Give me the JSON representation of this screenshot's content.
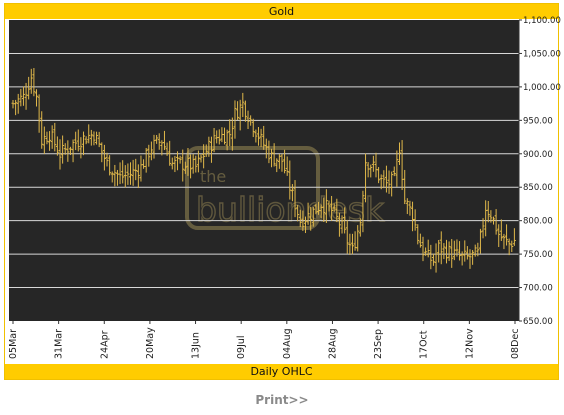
{
  "chart_data": {
    "type": "ohlc",
    "title": "Gold",
    "footer_label": "Daily OHLC",
    "watermark": "the bulliondesk",
    "x_tick_labels": [
      "05Mar",
      "31Mar",
      "24Apr",
      "20May",
      "13Jun",
      "09Jul",
      "04Aug",
      "28Aug",
      "23Sep",
      "17Oct",
      "12Nov",
      "08Dec"
    ],
    "y_tick_labels": [
      "1,100.00",
      "1,050.00",
      "1,000.00",
      "950.00",
      "900.00",
      "850.00",
      "800.00",
      "750.00",
      "700.00",
      "650.00"
    ],
    "y_ticks": [
      1100,
      1050,
      1000,
      950,
      900,
      850,
      800,
      750,
      700,
      650
    ],
    "ylim": [
      650,
      1100
    ],
    "grid": true,
    "colors": {
      "background": "#262626",
      "bars": "#e0b84a",
      "grid": "#d8d8d8",
      "header": "#ffcc00"
    },
    "anchors": [
      [
        0,
        975
      ],
      [
        4,
        985
      ],
      [
        7,
        1015
      ],
      [
        9,
        985
      ],
      [
        11,
        920
      ],
      [
        14,
        930
      ],
      [
        18,
        900
      ],
      [
        23,
        915
      ],
      [
        28,
        925
      ],
      [
        31,
        930
      ],
      [
        36,
        885
      ],
      [
        41,
        865
      ],
      [
        45,
        870
      ],
      [
        49,
        880
      ],
      [
        53,
        910
      ],
      [
        57,
        920
      ],
      [
        61,
        885
      ],
      [
        66,
        885
      ],
      [
        70,
        880
      ],
      [
        74,
        905
      ],
      [
        78,
        925
      ],
      [
        83,
        930
      ],
      [
        85,
        960
      ],
      [
        88,
        975
      ],
      [
        91,
        950
      ],
      [
        95,
        920
      ],
      [
        99,
        895
      ],
      [
        103,
        890
      ],
      [
        106,
        850
      ],
      [
        110,
        800
      ],
      [
        114,
        810
      ],
      [
        118,
        825
      ],
      [
        122,
        815
      ],
      [
        126,
        790
      ],
      [
        128,
        770
      ],
      [
        130,
        755
      ],
      [
        133,
        800
      ],
      [
        135,
        890
      ],
      [
        138,
        880
      ],
      [
        141,
        860
      ],
      [
        143,
        855
      ],
      [
        146,
        860
      ],
      [
        148,
        910
      ],
      [
        150,
        830
      ],
      [
        153,
        810
      ],
      [
        155,
        775
      ],
      [
        157,
        755
      ],
      [
        159,
        745
      ],
      [
        161,
        740
      ],
      [
        163,
        760
      ],
      [
        166,
        755
      ],
      [
        169,
        750
      ],
      [
        172,
        745
      ],
      [
        174,
        745
      ],
      [
        178,
        750
      ],
      [
        181,
        820
      ],
      [
        183,
        810
      ],
      [
        186,
        780
      ],
      [
        188,
        770
      ],
      [
        190,
        765
      ],
      [
        192,
        770
      ]
    ]
  },
  "print_label": "Print>>"
}
